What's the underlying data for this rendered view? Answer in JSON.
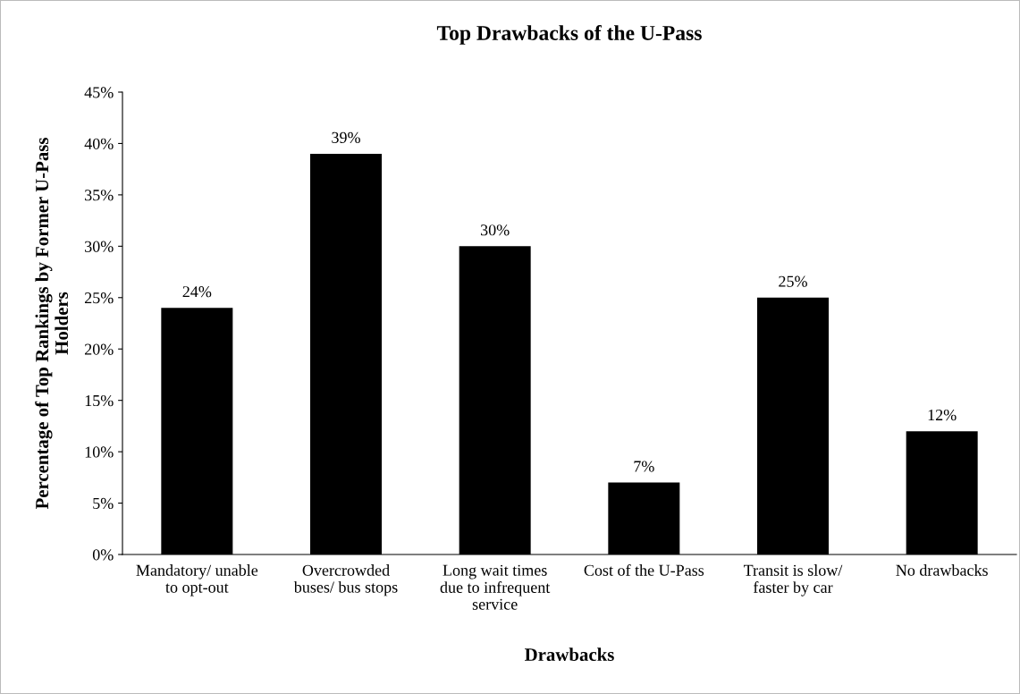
{
  "chart_data": {
    "type": "bar",
    "title": "Top Drawbacks of the U-Pass",
    "xlabel": "Drawbacks",
    "ylabel": "Percentage of Top Rankings by Former U-Pass\nHolders",
    "categories": [
      "Mandatory/ unable\nto opt-out",
      "Overcrowded\nbuses/ bus stops",
      "Long wait times\ndue to infrequent\nservice",
      "Cost of the U-Pass",
      "Transit is slow/\nfaster by car",
      "No drawbacks"
    ],
    "values": [
      24,
      39,
      30,
      7,
      25,
      12
    ],
    "value_labels": [
      "24%",
      "39%",
      "30%",
      "7%",
      "25%",
      "12%"
    ],
    "color": "#000000",
    "ylim": [
      0,
      45
    ],
    "yticks": [
      {
        "value": 0,
        "label": "0%"
      },
      {
        "value": 5,
        "label": "5%"
      },
      {
        "value": 10,
        "label": "10%"
      },
      {
        "value": 15,
        "label": "15%"
      },
      {
        "value": 20,
        "label": "20%"
      },
      {
        "value": 25,
        "label": "25%"
      },
      {
        "value": 30,
        "label": "30%"
      },
      {
        "value": 35,
        "label": "35%"
      },
      {
        "value": 40,
        "label": "40%"
      },
      {
        "value": 45,
        "label": "45%"
      }
    ],
    "grid": false,
    "legend": false
  }
}
